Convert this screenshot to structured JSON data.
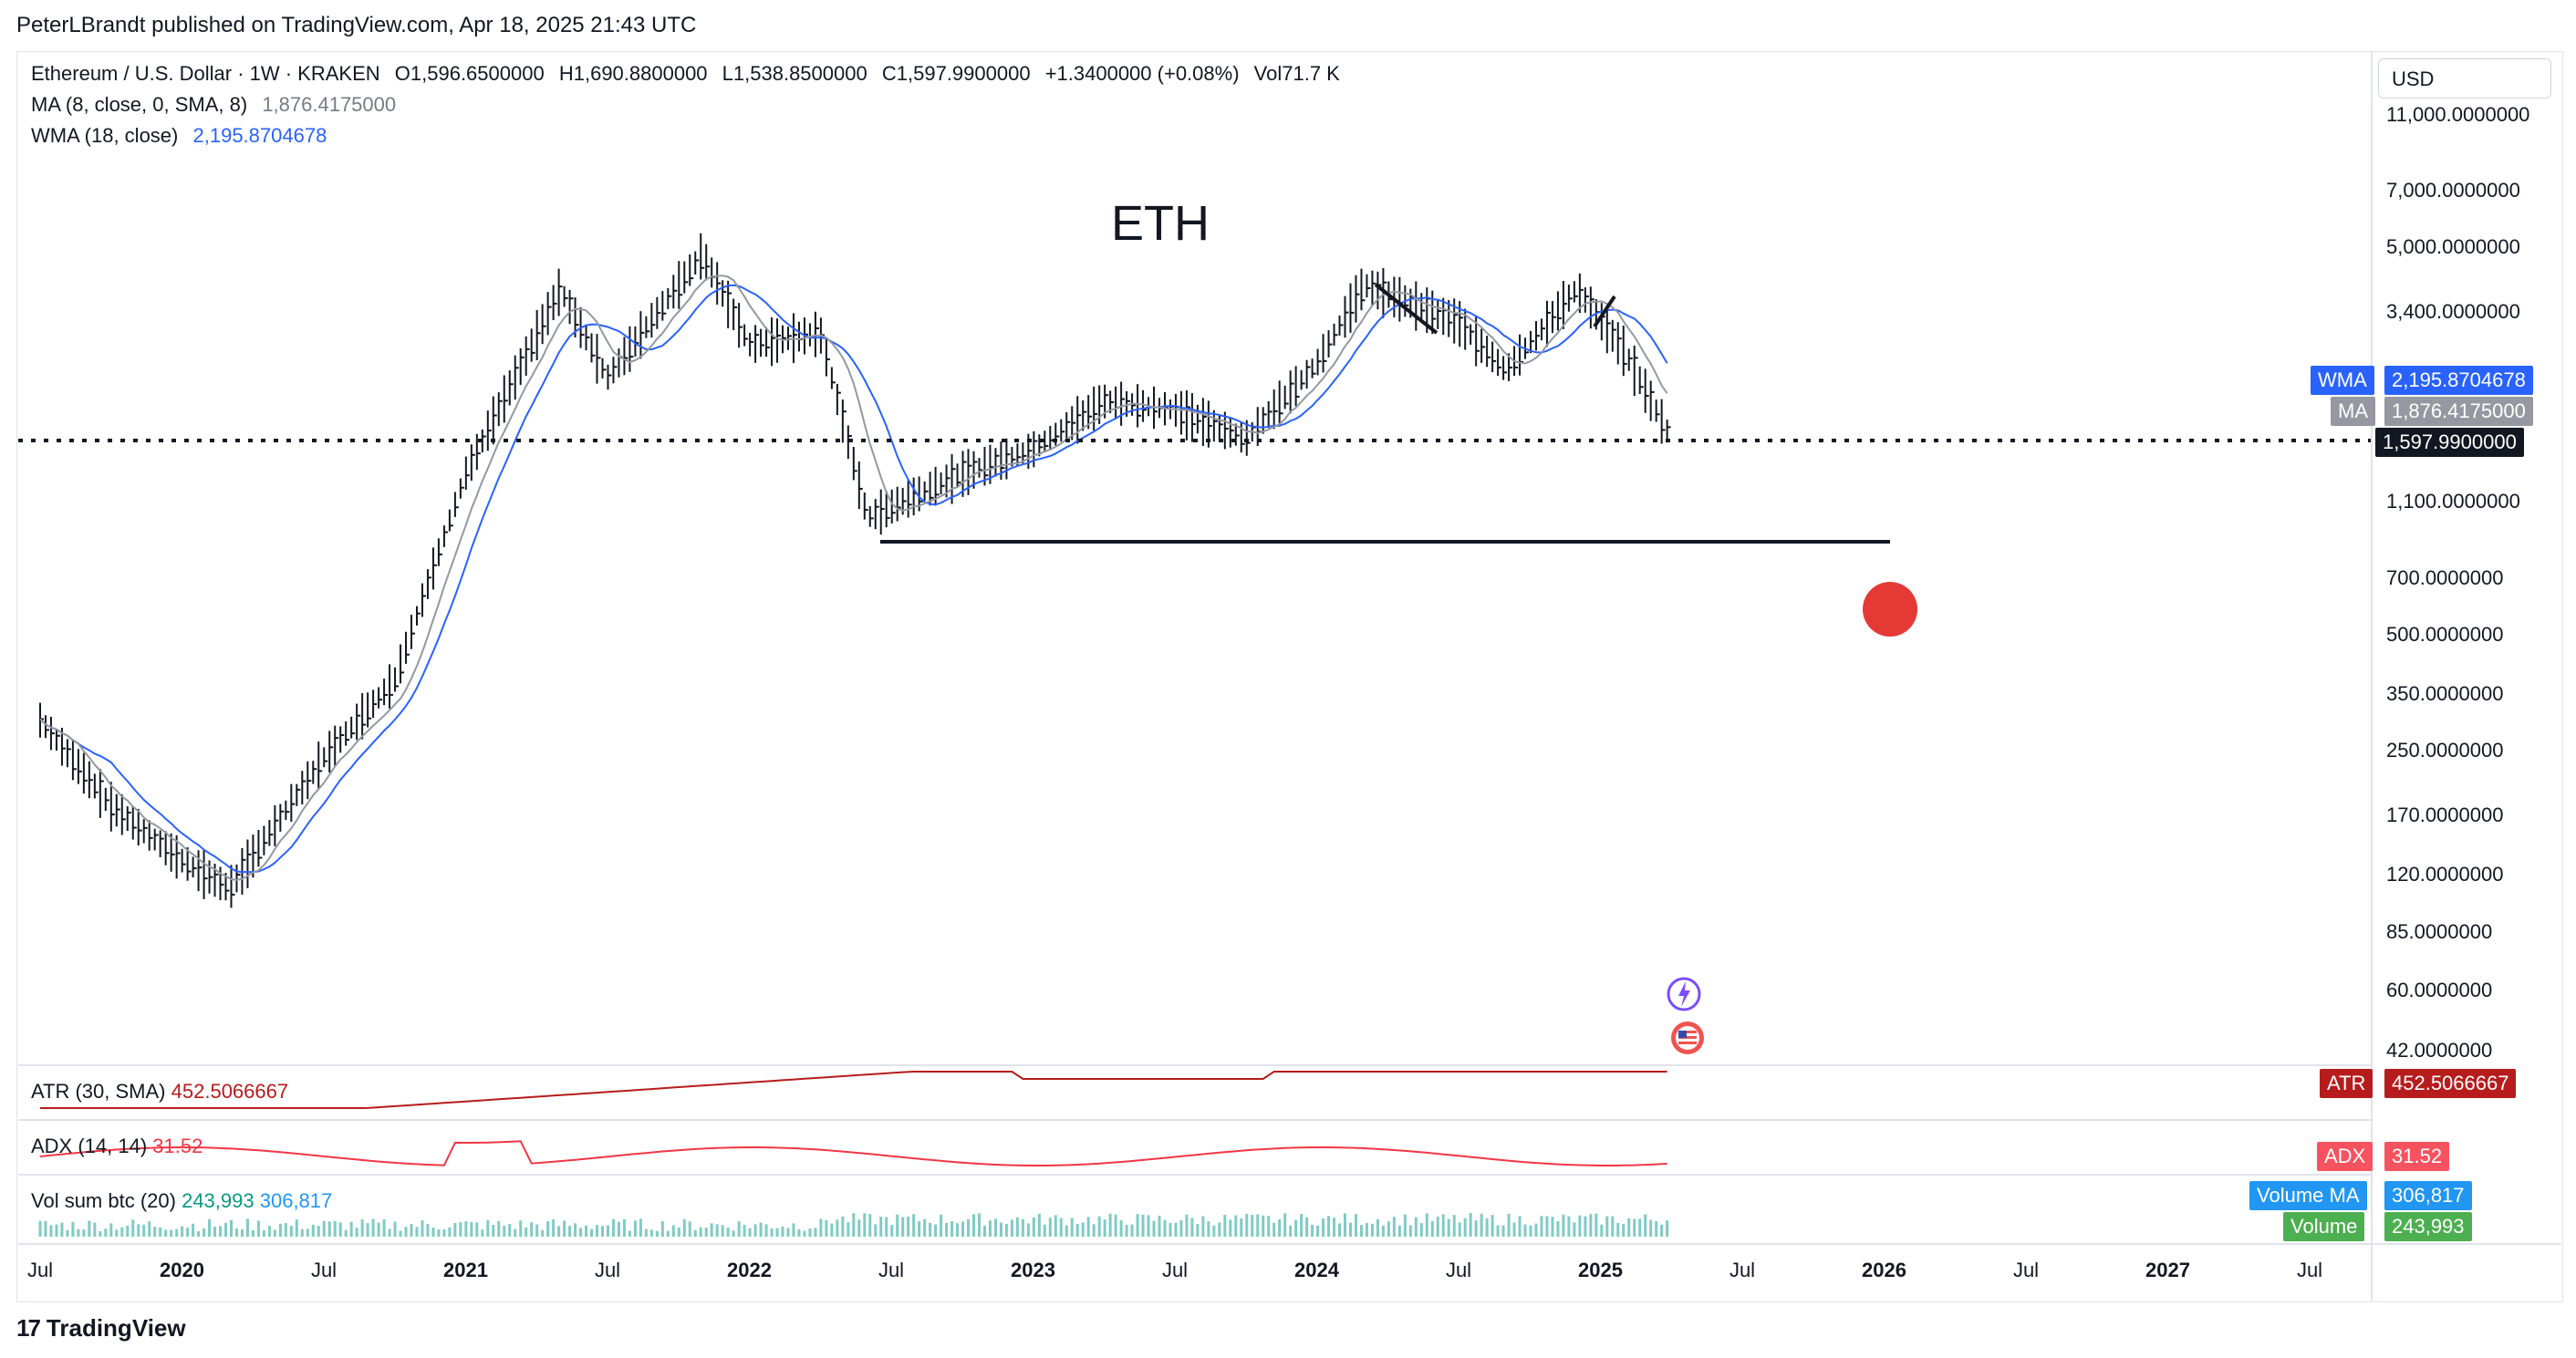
{
  "publisher": "PeterLBrandt published on TradingView.com, Apr 18, 2025 21:43 UTC",
  "legend": {
    "symbol": "Ethereum / U.S. Dollar · 1W · KRAKEN",
    "open": "O1,596.6500000",
    "high": "H1,690.8800000",
    "low": "L1,538.8500000",
    "close": "C1,597.9900000",
    "change": "+1.3400000 (+0.08%)",
    "vol": "Vol71.7 K",
    "ma_name": "MA (8, close, 0, SMA, 8)",
    "ma_value": "1,876.4175000",
    "wma_name": "WMA (18, close)",
    "wma_value": "2,195.8704678"
  },
  "currency": "USD",
  "annotation_title": "ETH",
  "price_axis": [
    "11,000.0000000",
    "7,000.0000000",
    "5,000.0000000",
    "3,400.0000000",
    "1,100.0000000",
    "700.0000000",
    "500.0000000",
    "350.0000000",
    "250.0000000",
    "170.0000000",
    "120.0000000",
    "85.0000000",
    "60.0000000",
    "42.0000000"
  ],
  "tags": {
    "wma_label": "WMA",
    "wma_value": "2,195.8704678",
    "ma_label": "MA",
    "ma_value": "1,876.4175000",
    "last_value": "1,597.9900000",
    "atr_label": "ATR",
    "atr_value": "452.5066667",
    "adx_label": "ADX",
    "adx_value": "31.52",
    "volma_label": "Volume MA",
    "volma_value": "306,817",
    "vol_label": "Volume",
    "vol_value": "243,993"
  },
  "atr_legend": {
    "name": "ATR (30, SMA)",
    "value": "452.5066667"
  },
  "adx_legend": {
    "name": "ADX (14, 14)",
    "value": "31.52"
  },
  "vol_legend": {
    "name": "Vol sum btc (20)",
    "value1": "243,993",
    "value2": "306,817"
  },
  "time_axis": [
    {
      "label": "Jul",
      "year": false
    },
    {
      "label": "2020",
      "year": true
    },
    {
      "label": "Jul",
      "year": false
    },
    {
      "label": "2021",
      "year": true
    },
    {
      "label": "Jul",
      "year": false
    },
    {
      "label": "2022",
      "year": true
    },
    {
      "label": "Jul",
      "year": false
    },
    {
      "label": "2023",
      "year": true
    },
    {
      "label": "Jul",
      "year": false
    },
    {
      "label": "2024",
      "year": true
    },
    {
      "label": "Jul",
      "year": false
    },
    {
      "label": "2025",
      "year": true
    },
    {
      "label": "Jul",
      "year": false
    },
    {
      "label": "2026",
      "year": true
    },
    {
      "label": "Jul",
      "year": false
    },
    {
      "label": "2027",
      "year": true
    },
    {
      "label": "Jul",
      "year": false
    }
  ],
  "branding": "TradingView",
  "colors": {
    "wma": "#2962ff",
    "ma": "#787b86",
    "atr": "#b71c1c",
    "adx": "#f23645",
    "vol": "#26a69a",
    "target_dot": "#e53935"
  },
  "chart_data": {
    "type": "line",
    "scale": "log",
    "title": "ETH",
    "series": [
      {
        "name": "Ethereum / U.S. Dollar",
        "x": [
          "2019-07",
          "2019-10",
          "2020-01",
          "2020-03",
          "2020-07",
          "2020-10",
          "2021-01",
          "2021-05",
          "2021-07",
          "2021-11",
          "2022-01",
          "2022-04",
          "2022-06",
          "2022-10",
          "2023-01",
          "2023-04",
          "2023-07",
          "2023-10",
          "2024-01",
          "2024-03",
          "2024-07",
          "2024-09",
          "2024-12",
          "2025-02",
          "2025-04"
        ],
        "values": [
          300,
          180,
          130,
          110,
          240,
          380,
          1300,
          3900,
          2300,
          4800,
          2800,
          3000,
          1000,
          1300,
          1500,
          2000,
          1900,
          1600,
          2500,
          4000,
          3200,
          2400,
          3900,
          2700,
          1598
        ]
      },
      {
        "name": "MA",
        "last": 1876.4175
      },
      {
        "name": "WMA",
        "last": 2195.8704678
      }
    ],
    "support_level": 880,
    "last_price": 1597.99,
    "atr_last": 452.5066667,
    "adx_last": 31.52,
    "volume_last": 243993,
    "volume_ma_last": 306817
  }
}
